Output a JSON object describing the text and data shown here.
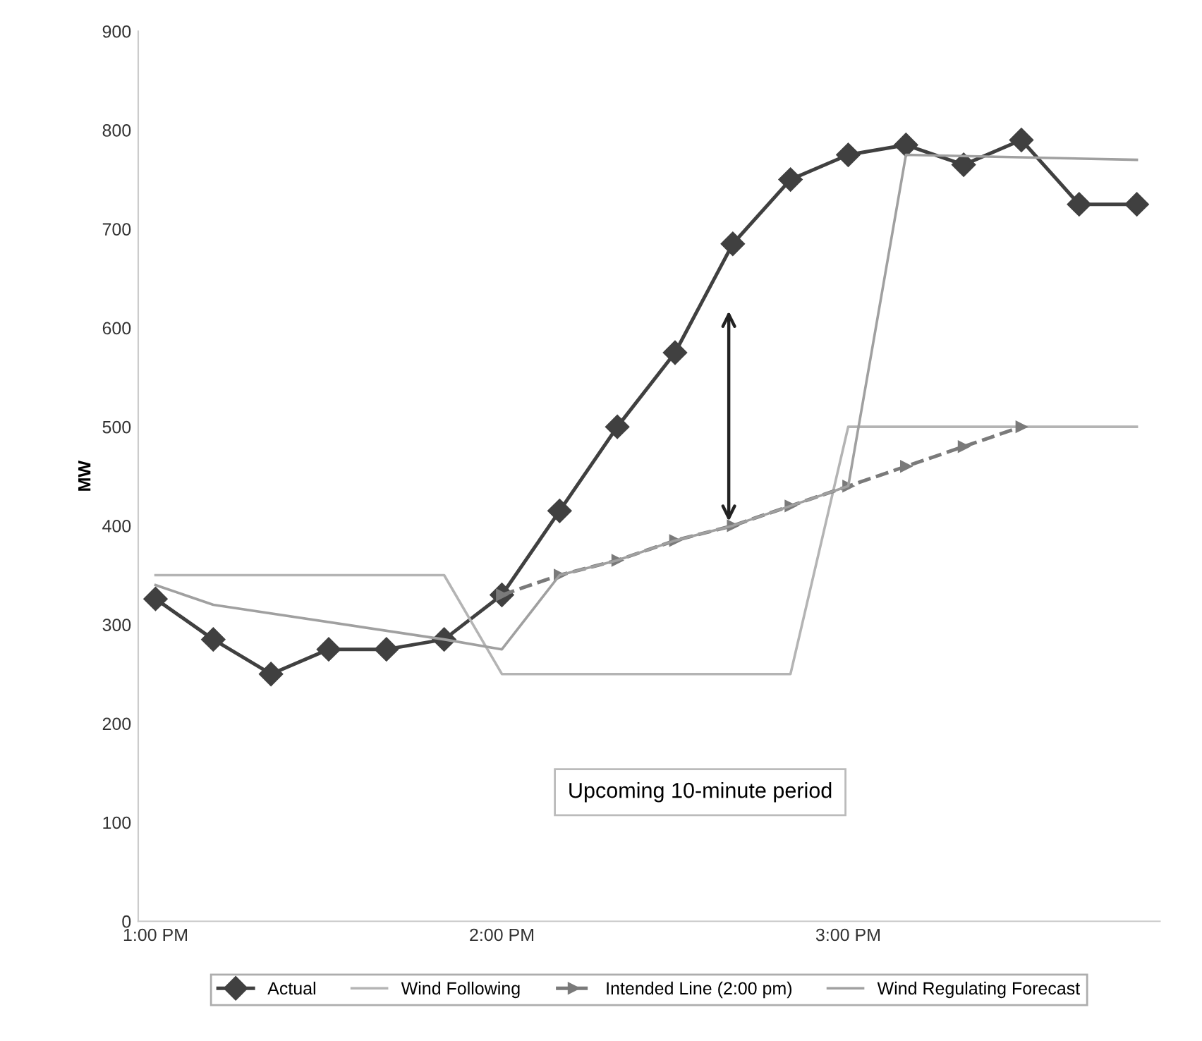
{
  "chart_data": {
    "type": "line",
    "ylabel": "MW",
    "xlim": [
      12.95,
      15.9
    ],
    "xticks": [
      {
        "value": 13,
        "label": "1:00 PM"
      },
      {
        "value": 14,
        "label": "2:00 PM"
      },
      {
        "value": 15,
        "label": "3:00 PM"
      }
    ],
    "ylim": [
      0,
      900
    ],
    "yticks": [
      0,
      100,
      200,
      300,
      400,
      500,
      600,
      700,
      800,
      900
    ],
    "grid": false,
    "legend": "bottom",
    "line_style": "solid",
    "series": [
      {
        "name": "Actual",
        "color": "#404040",
        "marker": "diamond",
        "x": [
          13,
          13.1667,
          13.3333,
          13.5,
          13.6667,
          13.8333,
          14,
          14.1667,
          14.3333,
          14.5,
          14.6667,
          14.8333,
          15,
          15.1667,
          15.3333,
          15.5,
          15.6667,
          15.8333
        ],
        "values": [
          326,
          285,
          250,
          275,
          275,
          285,
          330,
          415,
          500,
          575,
          685,
          750,
          775,
          785,
          765,
          790,
          725,
          725
        ]
      },
      {
        "name": "Wind Following",
        "color": "#b4b4b4",
        "marker": "none",
        "x": [
          13,
          13.8333,
          14,
          14.8333,
          15,
          15.8333
        ],
        "values": [
          350,
          350,
          250,
          250,
          500,
          500
        ]
      },
      {
        "name": "Intended Line (2:00 pm)",
        "color": "#7a7a7a",
        "marker": "triangle",
        "line_style": "dashed",
        "x": [
          14,
          14.1667,
          14.3333,
          14.5,
          14.6667,
          14.8333,
          15,
          15.1667,
          15.3333,
          15.5
        ],
        "values": [
          330,
          350,
          365,
          385,
          400,
          420,
          440,
          460,
          480,
          500
        ]
      },
      {
        "name": "Wind Regulating Forecast",
        "color": "#a0a0a0",
        "marker": "none",
        "x": [
          13,
          13.1667,
          13.8333,
          14,
          14.1667,
          14.3333,
          14.5,
          14.6667,
          14.8333,
          15,
          15.1667,
          15.8333
        ],
        "values": [
          340,
          320,
          285,
          275,
          350,
          365,
          385,
          400,
          420,
          440,
          775,
          770
        ]
      }
    ],
    "annotations": [
      "Upcoming 10-minute period"
    ]
  }
}
